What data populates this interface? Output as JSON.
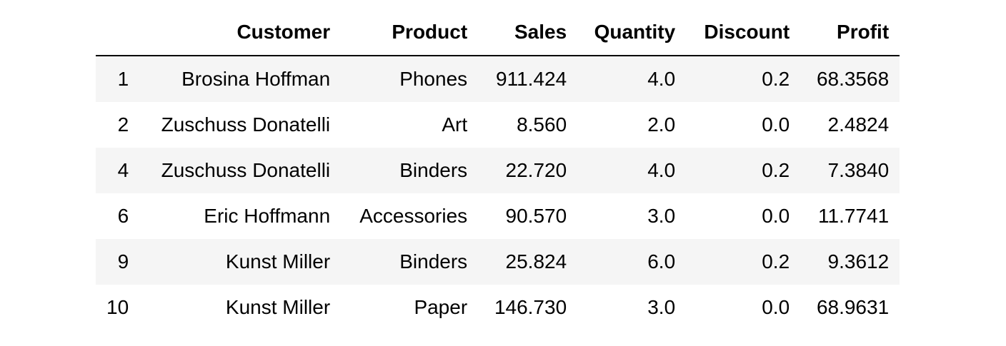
{
  "table": {
    "index_header": "",
    "columns": [
      "Customer",
      "Product",
      "Sales",
      "Quantity",
      "Discount",
      "Profit"
    ],
    "rows": [
      {
        "index": "1",
        "cells": [
          "Brosina Hoffman",
          "Phones",
          "911.424",
          "4.0",
          "0.2",
          "68.3568"
        ]
      },
      {
        "index": "2",
        "cells": [
          "Zuschuss Donatelli",
          "Art",
          "8.560",
          "2.0",
          "0.0",
          "2.4824"
        ]
      },
      {
        "index": "4",
        "cells": [
          "Zuschuss Donatelli",
          "Binders",
          "22.720",
          "4.0",
          "0.2",
          "7.3840"
        ]
      },
      {
        "index": "6",
        "cells": [
          "Eric Hoffmann",
          "Accessories",
          "90.570",
          "3.0",
          "0.0",
          "11.7741"
        ]
      },
      {
        "index": "9",
        "cells": [
          "Kunst Miller",
          "Binders",
          "25.824",
          "6.0",
          "0.2",
          "9.3612"
        ]
      },
      {
        "index": "10",
        "cells": [
          "Kunst Miller",
          "Paper",
          "146.730",
          "3.0",
          "0.0",
          "68.9631"
        ]
      }
    ]
  }
}
